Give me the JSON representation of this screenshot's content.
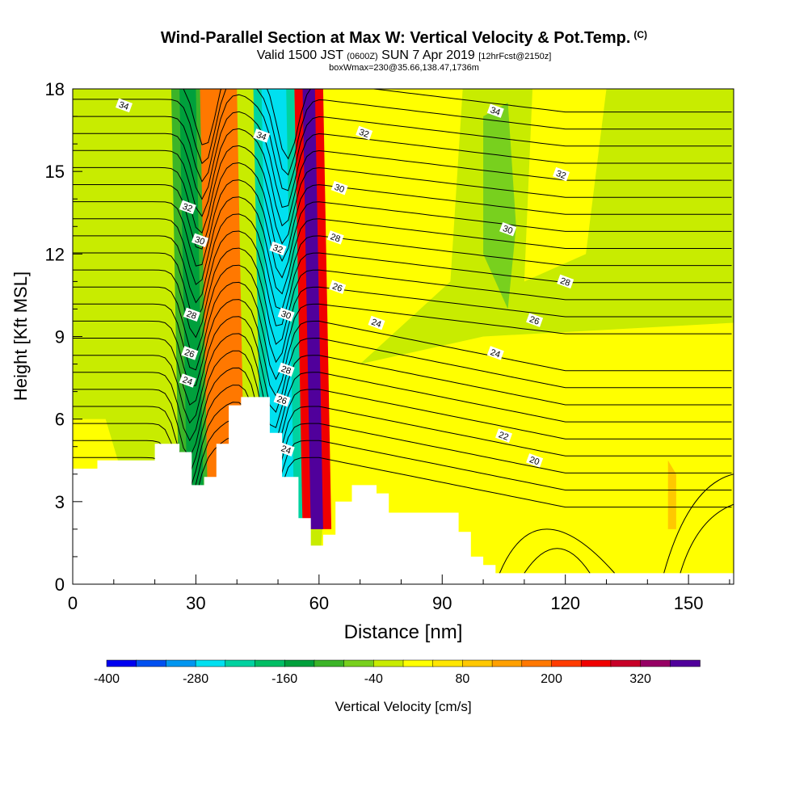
{
  "header": {
    "title": "Wind-Parallel Section at Max W: Vertical Velocity & Pot.Temp.",
    "copyright": "(C)",
    "valid_prefix": "Valid 1500 JST",
    "valid_utc": "(0600Z)",
    "valid_date": "SUN 7 Apr 2019",
    "forecast": "[12hrFcst@2150z]",
    "box_info": "boxWmax=230@35.66,138.47,1736m"
  },
  "chart_data": {
    "type": "heatmap",
    "xlabel": "Distance [nm]",
    "ylabel": "Height [Kft MSL]",
    "xlim": [
      0,
      161
    ],
    "ylim": [
      0,
      18
    ],
    "xticks": [
      "0",
      "30",
      "60",
      "90",
      "120",
      "150"
    ],
    "yticks": [
      "0",
      "3",
      "6",
      "9",
      "12",
      "15",
      "18"
    ],
    "colorbar": {
      "label": "Vertical Velocity [cm/s]",
      "tick_labels": [
        "-400",
        "-280",
        "-160",
        "-40",
        "80",
        "200",
        "320"
      ],
      "colors": [
        "#0000f0",
        "#0050f0",
        "#0096f0",
        "#00e0f0",
        "#00d2a0",
        "#00be64",
        "#00a03c",
        "#3cb428",
        "#78d01e",
        "#c8ec00",
        "#ffff00",
        "#ffe600",
        "#ffc800",
        "#ffa000",
        "#ff7800",
        "#ff3c00",
        "#f00000",
        "#c80028",
        "#960064",
        "#50009b"
      ]
    },
    "background_color": "#c8ec00",
    "velocity_bands": [
      {
        "x": [
          24,
          32
        ],
        "w": -180,
        "color": "#3cb428"
      },
      {
        "x": [
          26,
          30
        ],
        "w": -220,
        "color": "#00a03c"
      },
      {
        "x": [
          31,
          40
        ],
        "w": 140,
        "color": "#ff7800"
      },
      {
        "x": [
          44,
          54
        ],
        "w": -250,
        "color": "#00d2a0"
      },
      {
        "x": [
          46,
          52
        ],
        "w": -320,
        "color": "#00e0f0"
      },
      {
        "x": [
          54,
          61
        ],
        "w": 260,
        "color": "#f00000"
      },
      {
        "x": [
          56,
          59
        ],
        "w": 360,
        "color": "#50009b"
      }
    ],
    "terrain_top_kft": [
      [
        0,
        4.2
      ],
      [
        6,
        4.2
      ],
      [
        6,
        4.5
      ],
      [
        20,
        4.5
      ],
      [
        20,
        5.1
      ],
      [
        26,
        5.1
      ],
      [
        26,
        4.8
      ],
      [
        29,
        4.8
      ],
      [
        29,
        3.6
      ],
      [
        32,
        3.6
      ],
      [
        32,
        3.9
      ],
      [
        35,
        3.9
      ],
      [
        35,
        5.1
      ],
      [
        38,
        5.1
      ],
      [
        38,
        6.5
      ],
      [
        41,
        6.5
      ],
      [
        41,
        6.8
      ],
      [
        48,
        6.8
      ],
      [
        48,
        5.5
      ],
      [
        51,
        5.5
      ],
      [
        51,
        3.9
      ],
      [
        55,
        3.9
      ],
      [
        55,
        2.4
      ],
      [
        58,
        2.4
      ],
      [
        58,
        1.4
      ],
      [
        61,
        1.4
      ],
      [
        61,
        1.8
      ],
      [
        64,
        1.8
      ],
      [
        64,
        3.0
      ],
      [
        68,
        3.0
      ],
      [
        68,
        3.6
      ],
      [
        74,
        3.6
      ],
      [
        74,
        3.3
      ],
      [
        77,
        3.3
      ],
      [
        77,
        2.6
      ],
      [
        94,
        2.6
      ],
      [
        94,
        1.9
      ],
      [
        97,
        1.9
      ],
      [
        97,
        1.0
      ],
      [
        100,
        1.0
      ],
      [
        100,
        0.7
      ],
      [
        103,
        0.7
      ],
      [
        103,
        0.4
      ],
      [
        161,
        0.4
      ]
    ],
    "theta_contours_K": [
      20,
      22,
      24,
      26,
      28,
      30,
      32,
      34
    ],
    "contour_labels": [
      {
        "text": "34",
        "x": 12.5,
        "y": 17.4
      },
      {
        "text": "34",
        "x": 103,
        "y": 17.2
      },
      {
        "text": "32",
        "x": 71,
        "y": 16.4
      },
      {
        "text": "32",
        "x": 119,
        "y": 14.9
      },
      {
        "text": "30",
        "x": 65,
        "y": 14.4
      },
      {
        "text": "30",
        "x": 106,
        "y": 12.9
      },
      {
        "text": "28",
        "x": 64,
        "y": 12.6
      },
      {
        "text": "28",
        "x": 120,
        "y": 11.0
      },
      {
        "text": "26",
        "x": 64.5,
        "y": 10.8
      },
      {
        "text": "26",
        "x": 112.5,
        "y": 9.6
      },
      {
        "text": "24",
        "x": 74,
        "y": 9.5
      },
      {
        "text": "24",
        "x": 103,
        "y": 8.4
      },
      {
        "text": "22",
        "x": 105,
        "y": 5.4
      },
      {
        "text": "20",
        "x": 112.5,
        "y": 4.5
      },
      {
        "text": "34",
        "x": 46,
        "y": 16.3
      },
      {
        "text": "32",
        "x": 50,
        "y": 12.2
      },
      {
        "text": "30",
        "x": 52,
        "y": 9.8
      },
      {
        "text": "28",
        "x": 52,
        "y": 7.8
      },
      {
        "text": "26",
        "x": 51,
        "y": 6.7
      },
      {
        "text": "24",
        "x": 52,
        "y": 4.9
      },
      {
        "text": "32",
        "x": 28,
        "y": 13.7
      },
      {
        "text": "30",
        "x": 31,
        "y": 12.5
      },
      {
        "text": "28",
        "x": 29,
        "y": 9.8
      },
      {
        "text": "26",
        "x": 28.5,
        "y": 8.4
      },
      {
        "text": "24",
        "x": 28,
        "y": 7.4
      }
    ]
  }
}
